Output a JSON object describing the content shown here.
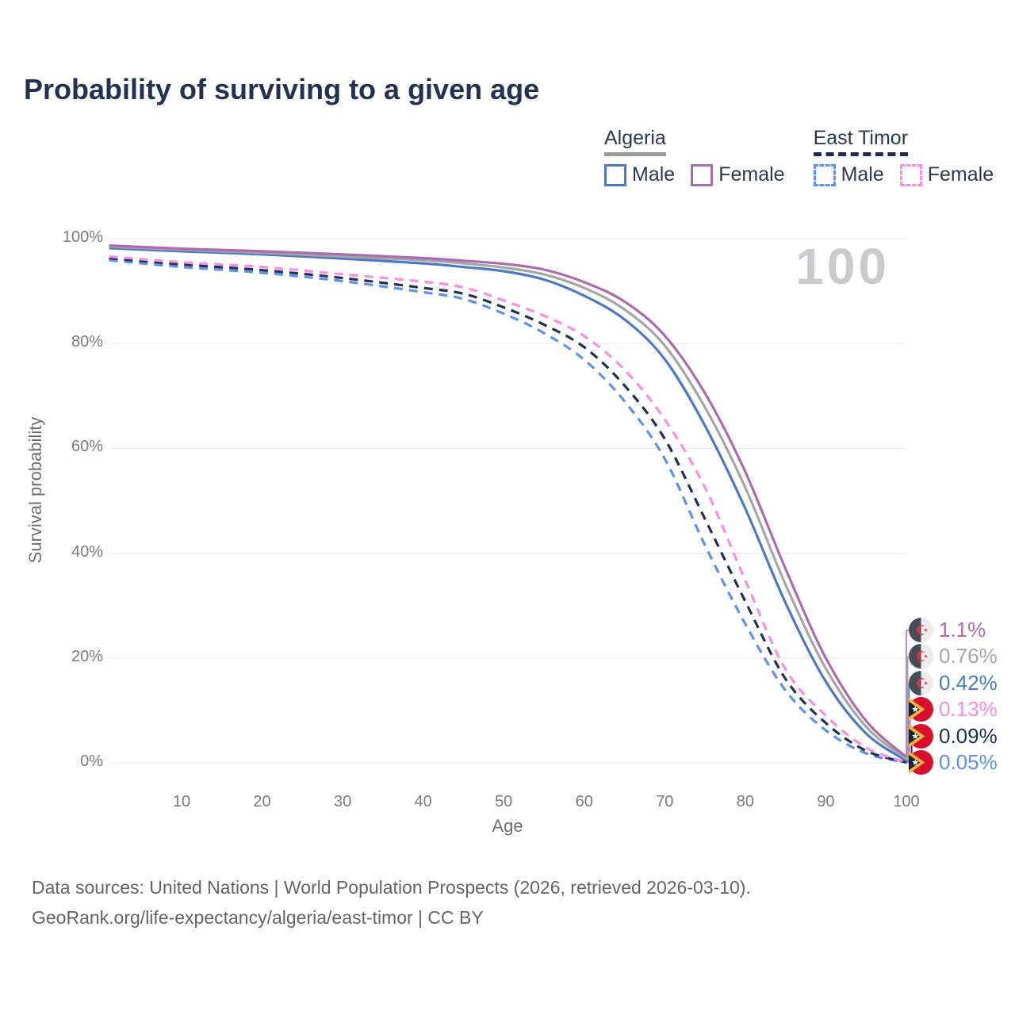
{
  "title": "Probability of surviving to a given age",
  "watermark_age_label": "100",
  "legend": {
    "groups": [
      {
        "name": "Algeria",
        "line_style": "solid",
        "line_color": "#9b9b9b",
        "items": [
          {
            "label": "Male",
            "color": "#4c7ac2",
            "dashed": false
          },
          {
            "label": "Female",
            "color": "#ad6bad",
            "dashed": false
          }
        ]
      },
      {
        "name": "East Timor",
        "line_style": "dashed",
        "line_color": "#1f2c4e",
        "items": [
          {
            "label": "Male",
            "color": "#5e90f0",
            "dashed": true
          },
          {
            "label": "Female",
            "color": "#fc8de1",
            "dashed": true
          }
        ]
      }
    ]
  },
  "chart_data": {
    "type": "line",
    "title": "Probability of surviving to a given age",
    "xlabel": "Age",
    "ylabel": "Survival probability",
    "xlim": [
      1,
      100
    ],
    "ylim": [
      0,
      100
    ],
    "x_ticks": [
      10,
      20,
      30,
      40,
      50,
      60,
      70,
      80,
      90,
      100
    ],
    "y_ticks": [
      0,
      20,
      40,
      60,
      80,
      100
    ],
    "y_tick_suffix": "%",
    "grid": "horizontal",
    "legend_position": "top-right",
    "ages": [
      1,
      10,
      20,
      30,
      40,
      45,
      50,
      55,
      60,
      65,
      70,
      75,
      80,
      85,
      90,
      95,
      100
    ],
    "series": [
      {
        "name": "Algeria Female",
        "country": "Algeria",
        "sex": "Female",
        "color": "#ad6bad",
        "dashed": false,
        "flag": "algeria",
        "end_label": "1.1%",
        "values": [
          98.7,
          98.1,
          97.6,
          97.0,
          96.3,
          95.8,
          95.2,
          94.1,
          91.7,
          88.0,
          81.5,
          70.5,
          55.5,
          37.0,
          20.0,
          8.0,
          1.1
        ]
      },
      {
        "name": "Algeria Both sexes",
        "country": "Algeria",
        "sex": "Both",
        "color": "#a6a6a9",
        "dashed": false,
        "flag": "algeria",
        "end_label": "0.76%",
        "values": [
          98.5,
          97.9,
          97.3,
          96.6,
          95.9,
          95.3,
          94.5,
          93.2,
          90.6,
          86.5,
          79.6,
          67.8,
          52.5,
          34.0,
          18.0,
          6.9,
          0.76
        ]
      },
      {
        "name": "Algeria Male",
        "country": "Algeria",
        "sex": "Male",
        "color": "#4c7ac2",
        "dashed": false,
        "flag": "algeria",
        "end_label": "0.42%",
        "values": [
          98.2,
          97.6,
          97.0,
          96.2,
          95.3,
          94.6,
          93.8,
          92.2,
          89.1,
          84.6,
          77.0,
          64.3,
          48.5,
          30.5,
          15.5,
          5.6,
          0.42
        ]
      },
      {
        "name": "East Timor Female",
        "country": "East Timor",
        "sex": "Female",
        "color": "#fc8de1",
        "dashed": true,
        "flag": "east-timor",
        "end_label": "0.13%",
        "values": [
          96.6,
          95.5,
          94.6,
          93.2,
          91.8,
          90.7,
          88.2,
          85.3,
          81.4,
          75.0,
          65.5,
          52.5,
          34.8,
          17.8,
          9.0,
          2.9,
          0.13
        ]
      },
      {
        "name": "East Timor Both sexes",
        "country": "East Timor",
        "sex": "Both",
        "color": "#20304f",
        "dashed": true,
        "flag": "east-timor",
        "end_label": "0.09%",
        "values": [
          96.3,
          95.1,
          94.0,
          92.5,
          90.6,
          89.5,
          86.9,
          83.6,
          79.3,
          72.0,
          61.8,
          46.5,
          30.8,
          16.0,
          7.6,
          2.3,
          0.09
        ]
      },
      {
        "name": "East Timor Male",
        "country": "East Timor",
        "sex": "Male",
        "color": "#5e90f0",
        "dashed": true,
        "flag": "east-timor",
        "end_label": "0.05%",
        "values": [
          95.9,
          94.6,
          93.5,
          91.9,
          89.8,
          88.5,
          85.7,
          82.0,
          76.9,
          69.0,
          58.0,
          41.5,
          26.5,
          13.8,
          6.2,
          1.8,
          0.05
        ]
      }
    ]
  },
  "footer": {
    "line1": "Data sources: United Nations | World Population Prospects (2026, retrieved 2026-03-10).",
    "line2": "GeoRank.org/life-expectancy/algeria/east-timor | CC BY"
  }
}
